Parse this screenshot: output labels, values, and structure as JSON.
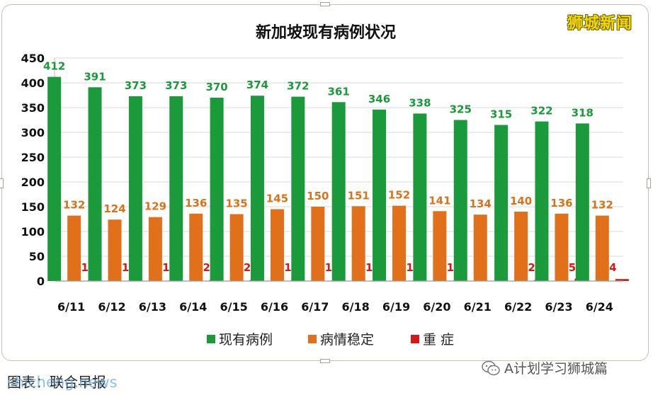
{
  "brand": "狮城新闻",
  "footer": {
    "source_text": "图表：联合早报",
    "watermark": "shicheng.news",
    "wechat_account": "A计划学习狮城篇"
  },
  "colors": {
    "series_1": "#1a9a3a",
    "series_2": "#e0711a",
    "series_3": "#d81818",
    "label_1": "#1a9a3a",
    "label_2": "#d9731a",
    "label_3": "#d81818"
  },
  "chart_data": {
    "type": "bar",
    "title": "新加坡现有病例状况",
    "xlabel": "",
    "ylabel": "",
    "ylim": [
      0,
      450
    ],
    "yticks": [
      0,
      50,
      100,
      150,
      200,
      250,
      300,
      350,
      400,
      450
    ],
    "grid": true,
    "legend_position": "bottom",
    "categories": [
      "6/11",
      "6/12",
      "6/13",
      "6/14",
      "6/15",
      "6/16",
      "6/17",
      "6/18",
      "6/19",
      "6/20",
      "6/21",
      "6/22",
      "6/23",
      "6/24"
    ],
    "series": [
      {
        "name": "现有病例",
        "values": [
          412,
          391,
          373,
          373,
          370,
          374,
          372,
          361,
          346,
          338,
          325,
          315,
          322,
          318
        ]
      },
      {
        "name": "病情稳定",
        "values": [
          132,
          124,
          129,
          136,
          135,
          145,
          150,
          151,
          152,
          141,
          134,
          140,
          136,
          132
        ]
      },
      {
        "name": "重 症",
        "values": [
          1,
          1,
          1,
          2,
          2,
          1,
          1,
          1,
          1,
          1,
          0,
          2,
          5,
          4
        ]
      }
    ],
    "data_labels": [
      [
        "412",
        "391",
        "373",
        "373",
        "370",
        "374",
        "372",
        "361",
        "346",
        "338",
        "325",
        "315",
        "322",
        "318"
      ],
      [
        "132",
        "124",
        "129",
        "136",
        "135",
        "145",
        "150",
        "151",
        "152",
        "141",
        "134",
        "140",
        "136",
        "132"
      ],
      [
        "1",
        "1",
        "1",
        "2",
        "2",
        "1",
        "1",
        "1",
        "1",
        "1",
        "",
        "2",
        "5",
        "4"
      ]
    ]
  }
}
